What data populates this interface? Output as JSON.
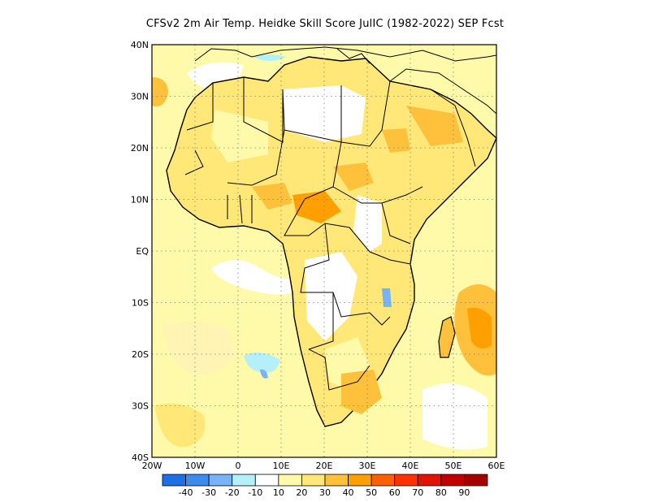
{
  "title": "CFSv2  2m Air Temp. Heidke Skill Score JulIC (1982-2022) SEP Fcst",
  "lat_labels": [
    "40N",
    "30N",
    "20N",
    "10N",
    "EQ",
    "10S",
    "20S",
    "30S",
    "40S"
  ],
  "lon_labels": [
    "20W",
    "10W",
    "0",
    "10E",
    "20E",
    "30E",
    "40E",
    "50E",
    "60E"
  ],
  "lon_range": [
    -20,
    60
  ],
  "lat_range": [
    -40,
    40
  ],
  "colorbar": {
    "labels": [
      "-40",
      "-30",
      "-20",
      "-10",
      "10",
      "20",
      "30",
      "40",
      "50",
      "60",
      "70",
      "80",
      "90"
    ],
    "colors": [
      "#1e6ee6",
      "#3c8cf0",
      "#78b4f5",
      "#b4f0fa",
      "#ffffff",
      "#fffaaa",
      "#ffe878",
      "#ffc03c",
      "#ffa000",
      "#ff6000",
      "#ff3200",
      "#e11400",
      "#c00000",
      "#a50000"
    ]
  }
}
